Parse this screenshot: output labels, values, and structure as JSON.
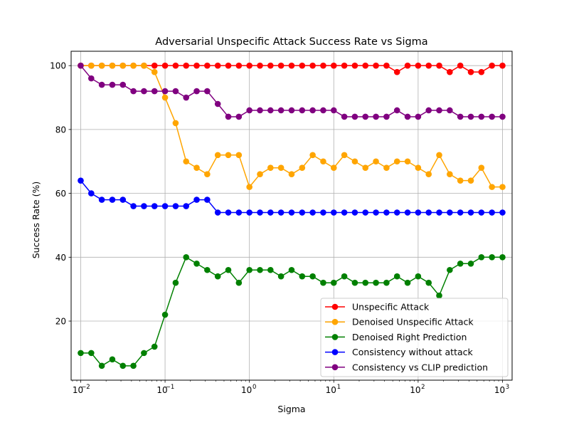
{
  "chart_data": {
    "type": "line",
    "title": "Adversarial Unspecific Attack Success Rate vs Sigma",
    "xlabel": "Sigma",
    "ylabel": "Success Rate (%)",
    "xscale": "log",
    "xlim": [
      0.0077,
      1300
    ],
    "ylim": [
      1.5,
      104.5
    ],
    "grid": true,
    "legend_position": "lower-right",
    "x_tick_values": [
      0.01,
      0.1,
      1,
      10,
      100,
      1000
    ],
    "x_tick_labels": [
      "10",
      "10",
      "10",
      "10",
      "10",
      "10"
    ],
    "x_tick_exponents": [
      "−2",
      "−1",
      "0",
      "1",
      "2",
      "3"
    ],
    "y_ticks": [
      20,
      40,
      60,
      80,
      100
    ],
    "y_tick_labels": [
      "20",
      "40",
      "60",
      "80",
      "100"
    ],
    "x": [
      0.01,
      0.01334,
      0.01778,
      0.02371,
      0.03162,
      0.04217,
      0.05623,
      0.07499,
      0.1,
      0.1334,
      0.1778,
      0.2371,
      0.3162,
      0.4217,
      0.5623,
      0.7499,
      1.0,
      1.334,
      1.778,
      2.371,
      3.162,
      4.217,
      5.623,
      7.499,
      10.0,
      13.34,
      17.78,
      23.71,
      31.62,
      42.17,
      56.23,
      74.99,
      100.0,
      133.4,
      177.8,
      237.1,
      316.2,
      421.7,
      562.3,
      749.9,
      1000.0
    ],
    "series": [
      {
        "name": "Unspecific Attack",
        "color": "#ff0000",
        "values": [
          100,
          100,
          100,
          100,
          100,
          100,
          100,
          100,
          100,
          100,
          100,
          100,
          100,
          100,
          100,
          100,
          100,
          100,
          100,
          100,
          100,
          100,
          100,
          100,
          100,
          100,
          100,
          100,
          100,
          100,
          98,
          100,
          100,
          100,
          100,
          98,
          100,
          98,
          98,
          100,
          100
        ]
      },
      {
        "name": "Denoised Unspecific Attack",
        "color": "#ffa500",
        "values": [
          100,
          100,
          100,
          100,
          100,
          100,
          100,
          98,
          90,
          82,
          70,
          68,
          66,
          72,
          72,
          72,
          62,
          66,
          68,
          68,
          66,
          68,
          72,
          70,
          68,
          72,
          70,
          68,
          70,
          68,
          70,
          70,
          68,
          66,
          72,
          66,
          64,
          64,
          68,
          62,
          62
        ]
      },
      {
        "name": "Denoised Right Prediction",
        "color": "#008000",
        "values": [
          10,
          10,
          6,
          8,
          6,
          6,
          10,
          12,
          22,
          32,
          40,
          38,
          36,
          34,
          36,
          32,
          36,
          36,
          36,
          34,
          36,
          34,
          34,
          32,
          32,
          34,
          32,
          32,
          32,
          32,
          34,
          32,
          34,
          32,
          28,
          36,
          38,
          38,
          40,
          40,
          40
        ]
      },
      {
        "name": "Consistency without attack",
        "color": "#0000ff",
        "values": [
          64,
          60,
          58,
          58,
          58,
          56,
          56,
          56,
          56,
          56,
          56,
          58,
          58,
          54,
          54,
          54,
          54,
          54,
          54,
          54,
          54,
          54,
          54,
          54,
          54,
          54,
          54,
          54,
          54,
          54,
          54,
          54,
          54,
          54,
          54,
          54,
          54,
          54,
          54,
          54,
          54
        ]
      },
      {
        "name": "Consistency vs CLIP prediction",
        "color": "#800080",
        "values": [
          100,
          96,
          94,
          94,
          94,
          92,
          92,
          92,
          92,
          92,
          90,
          92,
          92,
          88,
          84,
          84,
          86,
          86,
          86,
          86,
          86,
          86,
          86,
          86,
          86,
          84,
          84,
          84,
          84,
          84,
          86,
          84,
          84,
          86,
          86,
          86,
          84,
          84,
          84,
          84,
          84
        ]
      }
    ]
  }
}
